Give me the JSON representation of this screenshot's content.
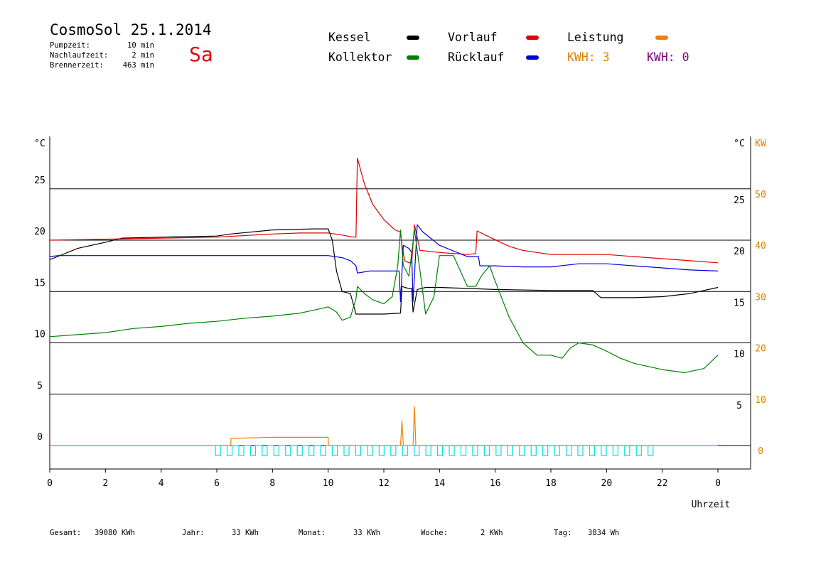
{
  "header": {
    "title": "CosmoSol 25.1.2014",
    "weekday": "Sa",
    "meta": [
      {
        "label": "Pumpzeit:",
        "value": "10 min"
      },
      {
        "label": "Nachlaufzeit:",
        "value": "2 min"
      },
      {
        "label": "Brennerzeit:",
        "value": "463 min"
      }
    ]
  },
  "legend": {
    "items": [
      {
        "label": "Kessel",
        "color": "#000000"
      },
      {
        "label": "Vorlauf",
        "color": "#e00000"
      },
      {
        "label": "Leistung",
        "color": "#f08000"
      },
      {
        "label": "Kollektor",
        "color": "#008000"
      },
      {
        "label": "Rücklauf",
        "color": "#0000e0"
      }
    ],
    "kwh1": "KWH: 3",
    "kwh1_color": "#e08000",
    "kwh2": "KWH: 0",
    "kwh2_color": "#800080"
  },
  "totals": [
    {
      "label": "Gesamt:",
      "value": "39080 KWh"
    },
    {
      "label": "Jahr:",
      "value": "33 KWh"
    },
    {
      "label": "Monat:",
      "value": "33 KWh"
    },
    {
      "label": "Woche:",
      "value": "2 KWh"
    },
    {
      "label": "Tag:",
      "value": "3834 Wh"
    }
  ],
  "chart_data": {
    "type": "line",
    "xlabel": "Uhrzeit",
    "x_ticks": [
      "0",
      "2",
      "4",
      "6",
      "8",
      "10",
      "12",
      "14",
      "16",
      "18",
      "20",
      "22",
      "0"
    ],
    "xlim": [
      0,
      24
    ],
    "left_axis": {
      "unit": "°C",
      "ticks": [
        "25",
        "20",
        "15",
        "10",
        "5",
        "0"
      ],
      "ylim": [
        0,
        30
      ]
    },
    "right_axis_temp": {
      "unit": "°C",
      "ticks": [
        "25",
        "20",
        "15",
        "10",
        "5"
      ]
    },
    "right_axis_power": {
      "unit": "KW",
      "ticks": [
        "50",
        "40",
        "30",
        "20",
        "10",
        "0"
      ],
      "color": "#e08000"
    },
    "grid": true,
    "series": [
      {
        "name": "Kessel",
        "color": "#000000",
        "x": [
          0,
          1,
          2,
          2.6,
          4,
          6,
          6.5,
          8,
          9.5,
          10,
          10.15,
          10.3,
          10.5,
          10.8,
          11.0,
          11.5,
          12.0,
          12.6,
          12.65,
          12.75,
          12.9,
          13.0,
          13.05,
          13.2,
          13.5,
          14,
          15,
          16,
          18,
          19.5,
          19.8,
          21,
          22,
          23,
          24
        ],
        "y": [
          18.1,
          19.2,
          19.8,
          20.2,
          20.3,
          20.4,
          20.6,
          21.0,
          21.1,
          21.1,
          20.0,
          17.0,
          15.0,
          14.8,
          12.8,
          12.8,
          12.8,
          12.9,
          15.5,
          15.4,
          15.3,
          15.3,
          13.0,
          15.2,
          15.4,
          15.4,
          15.3,
          15.2,
          15.1,
          15.1,
          14.4,
          14.4,
          14.5,
          14.8,
          15.4
        ]
      },
      {
        "name": "Vorlauf",
        "color": "#e00000",
        "x": [
          0,
          2,
          4,
          6,
          8,
          9,
          10,
          10.5,
          10.9,
          11.0,
          11.05,
          11.3,
          11.6,
          12.0,
          12.4,
          12.6,
          12.65,
          12.75,
          12.9,
          13.0,
          13.1,
          13.3,
          14,
          15,
          15.3,
          15.35,
          15.8,
          16.5,
          17,
          18,
          19,
          20,
          21,
          22,
          23,
          24
        ],
        "y": [
          20.0,
          20.1,
          20.2,
          20.3,
          20.6,
          20.7,
          20.7,
          20.5,
          20.3,
          20.3,
          28.0,
          25.5,
          23.5,
          22.0,
          21.0,
          20.8,
          19.5,
          18.0,
          17.8,
          17.8,
          21.5,
          19.0,
          18.8,
          18.6,
          18.7,
          20.9,
          20.3,
          19.4,
          19.0,
          18.6,
          18.6,
          18.6,
          18.4,
          18.2,
          18.0,
          17.8
        ]
      },
      {
        "name": "Rücklauf",
        "color": "#0000e0",
        "x": [
          0,
          0.3,
          1,
          2,
          4,
          6,
          8,
          10,
          10.5,
          10.8,
          11.0,
          11.05,
          11.5,
          12.0,
          12.55,
          12.6,
          12.7,
          12.9,
          13.0,
          13.05,
          13.2,
          13.4,
          14,
          15.0,
          15.4,
          15.45,
          16,
          17,
          18,
          19,
          20,
          21,
          22,
          23,
          24
        ],
        "y": [
          18.4,
          18.5,
          18.5,
          18.5,
          18.5,
          18.5,
          18.5,
          18.5,
          18.3,
          18.0,
          17.5,
          16.8,
          17.0,
          17.0,
          17.0,
          14.0,
          19.5,
          19.2,
          18.8,
          14.0,
          21.5,
          20.8,
          19.5,
          18.4,
          18.4,
          17.5,
          17.5,
          17.4,
          17.4,
          17.7,
          17.7,
          17.5,
          17.3,
          17.1,
          17.0
        ]
      },
      {
        "name": "Kollektor",
        "color": "#008000",
        "x": [
          0,
          1,
          2,
          3,
          4,
          5,
          6,
          7,
          8,
          9,
          9.5,
          10,
          10.3,
          10.5,
          10.8,
          11.0,
          11.05,
          11.3,
          11.6,
          12.0,
          12.3,
          12.5,
          12.6,
          12.7,
          12.9,
          13.1,
          13.3,
          13.5,
          13.8,
          14.0,
          14.5,
          15.0,
          15.3,
          15.5,
          15.8,
          16.0,
          16.5,
          17,
          17.5,
          18,
          18.4,
          18.7,
          19,
          19.5,
          20,
          20.5,
          21,
          22,
          22.8,
          23.5,
          24
        ],
        "y": [
          10.6,
          10.8,
          11.0,
          11.4,
          11.6,
          11.9,
          12.1,
          12.4,
          12.6,
          12.9,
          13.2,
          13.5,
          13.0,
          12.2,
          12.5,
          14.3,
          15.5,
          14.8,
          14.2,
          13.8,
          14.5,
          17.5,
          21.0,
          17.5,
          16.5,
          21.0,
          17.0,
          12.8,
          14.5,
          18.5,
          18.5,
          15.5,
          15.5,
          16.5,
          17.5,
          16.0,
          12.5,
          10.0,
          8.8,
          8.8,
          8.5,
          9.5,
          10.0,
          9.8,
          9.2,
          8.5,
          8.0,
          7.4,
          7.1,
          7.5,
          8.8
        ]
      },
      {
        "name": "Leistung",
        "color": "#f08000",
        "x": [
          0,
          5.9,
          6.5,
          6.51,
          8.0,
          10.0,
          10.01,
          12.6,
          12.65,
          12.7,
          13.05,
          13.1,
          13.15,
          24
        ],
        "y": [
          0,
          0,
          0,
          0.7,
          0.8,
          0.8,
          0,
          0,
          2.4,
          0,
          0,
          3.8,
          0,
          0
        ]
      },
      {
        "name": "Pumpe",
        "color": "#00e0e0",
        "x": [
          0,
          24
        ],
        "y": [
          0,
          0
        ]
      }
    ]
  }
}
